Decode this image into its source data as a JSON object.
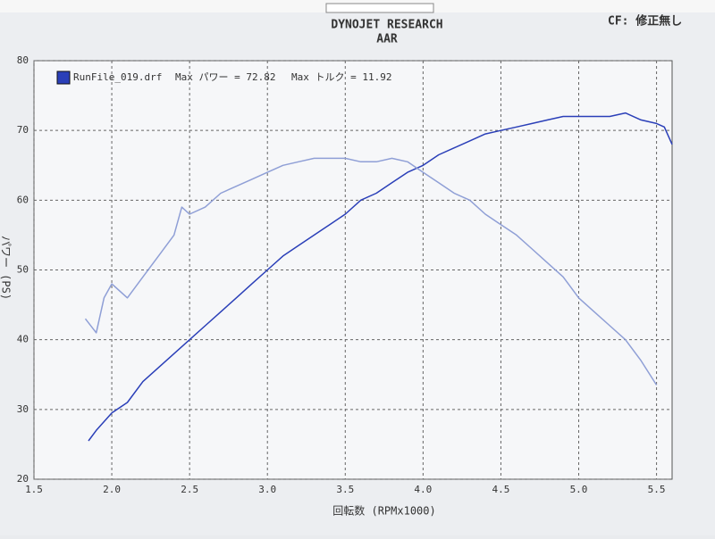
{
  "chart_data": {
    "type": "line",
    "title": "DYNOJET  RESEARCH",
    "subtitle": "AAR",
    "corner_note": "CF: 修正無し",
    "x_label": "回転数 (RPMx1000)",
    "y_label": "パワー (PS)",
    "annotations": [
      "Max パワー = 72.82",
      "Max トルク = 11.92"
    ],
    "xlim": [
      1.5,
      5.6
    ],
    "ylim": [
      20,
      80
    ],
    "xticks": [
      1.5,
      {
        "value": 2,
        "label": "2.0"
      },
      2.5,
      {
        "value": 3,
        "label": "3.0"
      },
      3.5,
      {
        "value": 4,
        "label": "4.0"
      },
      4.5,
      {
        "value": 5,
        "label": "5.0"
      },
      5.5
    ],
    "yticks": [
      20,
      30,
      40,
      50,
      60,
      70,
      80
    ],
    "grid": true,
    "series": [
      {
        "name": "RunFile_019.drf",
        "color": "#2a3fb8",
        "x": [
          1.85,
          1.9,
          2.0,
          2.1,
          2.2,
          2.3,
          2.4,
          2.5,
          2.6,
          2.7,
          2.8,
          2.9,
          3.0,
          3.1,
          3.2,
          3.3,
          3.4,
          3.5,
          3.6,
          3.7,
          3.8,
          3.9,
          4.0,
          4.1,
          4.2,
          4.3,
          4.4,
          4.5,
          4.6,
          4.7,
          4.8,
          4.9,
          5.0,
          5.1,
          5.2,
          5.3,
          5.4,
          5.5,
          5.55,
          5.6
        ],
        "values": [
          25.5,
          27,
          29.5,
          31,
          34,
          36,
          38,
          40,
          42,
          44,
          46,
          48,
          50,
          52,
          53.5,
          55,
          56.5,
          58,
          60,
          61,
          62.5,
          64,
          65,
          66.5,
          67.5,
          68.5,
          69.5,
          70,
          70.5,
          71,
          71.5,
          72,
          72,
          72,
          72,
          72.5,
          71.5,
          71,
          70.5,
          68
        ]
      },
      {
        "color": "#8f9fd6",
        "x": [
          1.83,
          1.9,
          1.95,
          2.0,
          2.1,
          2.2,
          2.3,
          2.4,
          2.45,
          2.5,
          2.6,
          2.7,
          2.8,
          2.9,
          3.0,
          3.1,
          3.2,
          3.3,
          3.4,
          3.5,
          3.6,
          3.7,
          3.8,
          3.9,
          4.0,
          4.1,
          4.2,
          4.3,
          4.4,
          4.5,
          4.6,
          4.7,
          4.8,
          4.9,
          5.0,
          5.1,
          5.2,
          5.3,
          5.4,
          5.5
        ],
        "values": [
          43,
          41,
          46,
          48,
          46,
          49,
          52,
          55,
          59,
          58,
          59,
          61,
          62,
          63,
          64,
          65,
          65.5,
          66,
          66,
          66,
          65.5,
          65.5,
          66,
          65.5,
          64,
          62.5,
          61,
          60,
          58,
          56.5,
          55,
          53,
          51,
          49,
          46,
          44,
          42,
          40,
          37,
          33.5
        ]
      }
    ]
  }
}
